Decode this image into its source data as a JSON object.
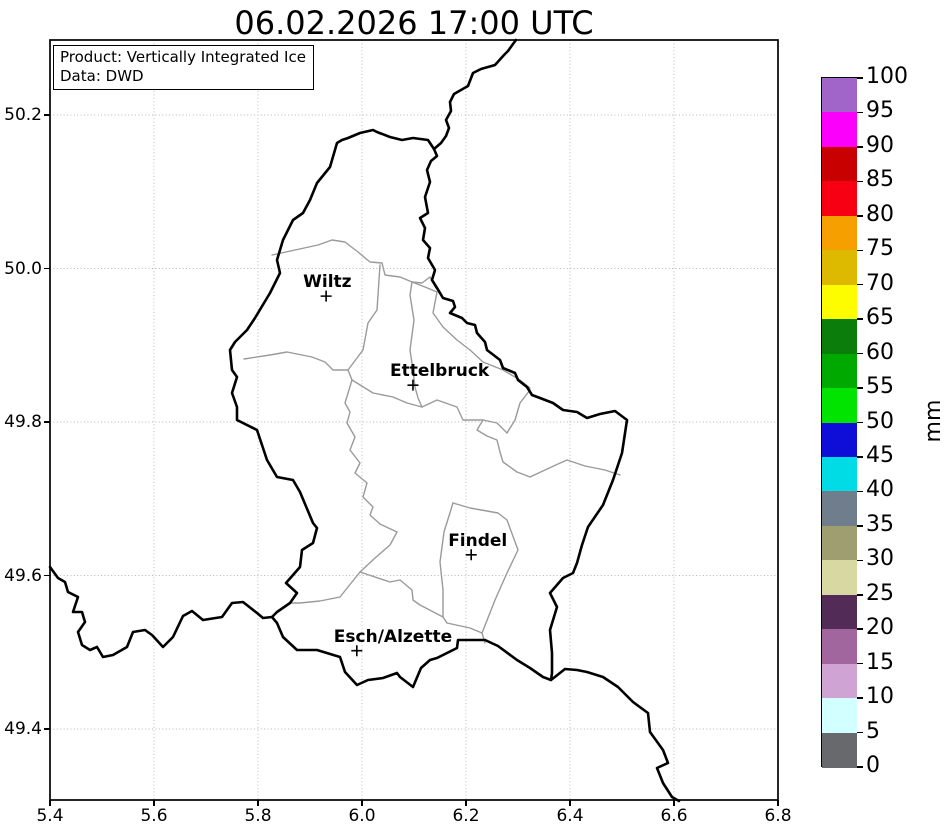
{
  "title": "06.02.2026 17:00 UTC",
  "product_box": {
    "line1": "Product: Vertically Integrated Ice",
    "line2": "Data: DWD"
  },
  "axes": {
    "x_tick_labels": [
      "5.4",
      "5.6",
      "5.8",
      "6.0",
      "6.2",
      "6.4",
      "6.6",
      "6.8"
    ],
    "y_tick_labels": [
      "50.2",
      "50.0",
      "49.8",
      "49.6",
      "49.4"
    ],
    "x_range": [
      5.4,
      6.8
    ],
    "y_range": [
      49.31,
      50.3
    ],
    "grid": "dotted"
  },
  "cities": [
    {
      "name": "Wiltz",
      "lon": 5.931,
      "lat": 49.964
    },
    {
      "name": "Ettelbruck",
      "lon": 6.098,
      "lat": 49.848
    },
    {
      "name": "Findel",
      "lon": 6.21,
      "lat": 49.627
    },
    {
      "name": "Esch/Alzette",
      "lon": 5.99,
      "lat": 49.502
    }
  ],
  "colorbar": {
    "unit": "mm",
    "levels": [
      0,
      5,
      10,
      15,
      20,
      25,
      30,
      35,
      40,
      45,
      50,
      55,
      60,
      65,
      70,
      75,
      80,
      85,
      90,
      95,
      100
    ],
    "segments": [
      {
        "min": 95,
        "max": 100,
        "color": "#A164C8"
      },
      {
        "min": 90,
        "max": 95,
        "color": "#FB00FB"
      },
      {
        "min": 85,
        "max": 90,
        "color": "#C80000"
      },
      {
        "min": 80,
        "max": 85,
        "color": "#F80014"
      },
      {
        "min": 75,
        "max": 80,
        "color": "#F5A000"
      },
      {
        "min": 70,
        "max": 75,
        "color": "#DDBA00"
      },
      {
        "min": 65,
        "max": 70,
        "color": "#FDFD00"
      },
      {
        "min": 60,
        "max": 65,
        "color": "#0A7D0A"
      },
      {
        "min": 55,
        "max": 60,
        "color": "#00A900"
      },
      {
        "min": 50,
        "max": 55,
        "color": "#00E400"
      },
      {
        "min": 45,
        "max": 50,
        "color": "#0E0ED8"
      },
      {
        "min": 40,
        "max": 45,
        "color": "#00DCE6"
      },
      {
        "min": 35,
        "max": 40,
        "color": "#6F7D8C"
      },
      {
        "min": 30,
        "max": 35,
        "color": "#9E9E70"
      },
      {
        "min": 25,
        "max": 30,
        "color": "#D8D8A2"
      },
      {
        "min": 20,
        "max": 25,
        "color": "#532B57"
      },
      {
        "min": 15,
        "max": 20,
        "color": "#A2669E"
      },
      {
        "min": 10,
        "max": 15,
        "color": "#CFA3D4"
      },
      {
        "min": 5,
        "max": 10,
        "color": "#D2FFFF"
      },
      {
        "min": 0,
        "max": 5,
        "color": "#68696D"
      }
    ]
  },
  "map_style": {
    "country_border_color": "#000000",
    "district_border_color": "#9a9a9a",
    "background": "#ffffff"
  }
}
